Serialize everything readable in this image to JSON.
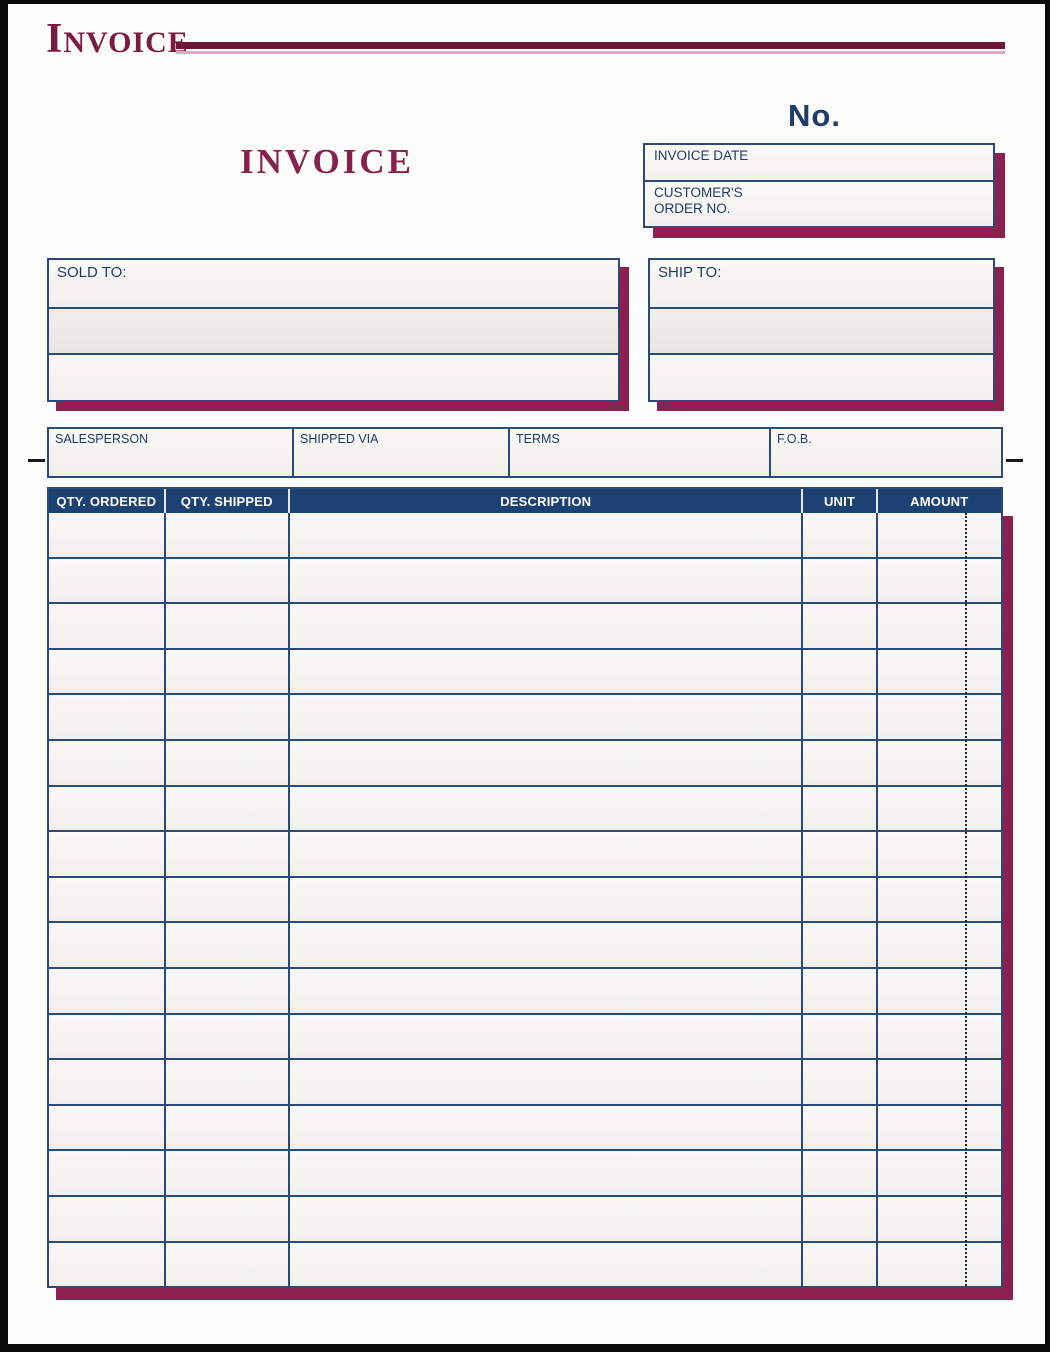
{
  "colors": {
    "maroon_dark": "#6e1638",
    "maroon_shadow": "#8c2150",
    "maroon_title": "#7b1b42",
    "pink_rule": "#d9abc4",
    "navy_header": "#1c4273",
    "navy_text": "#1e3c69",
    "navy_border": "#2c4a76"
  },
  "brand": {
    "title_initial": "I",
    "title_rest": "NVOICE"
  },
  "number": {
    "label": "No."
  },
  "meta": {
    "invoice_date_label": "INVOICE DATE",
    "customer_order_label": "CUSTOMER'S\nORDER NO."
  },
  "center_title": "INVOICE",
  "parties": {
    "sold_to_label": "SOLD TO:",
    "ship_to_label": "SHIP TO:"
  },
  "info_row": {
    "fields": [
      {
        "label": "SALESPERSON"
      },
      {
        "label": "SHIPPED VIA"
      },
      {
        "label": "TERMS"
      },
      {
        "label": "F.O.B."
      }
    ]
  },
  "table": {
    "columns": [
      {
        "label": "QTY. ORDERED"
      },
      {
        "label": "QTY. SHIPPED"
      },
      {
        "label": "DESCRIPTION"
      },
      {
        "label": "UNIT"
      },
      {
        "label": "AMOUNT"
      }
    ],
    "row_count": 17
  }
}
